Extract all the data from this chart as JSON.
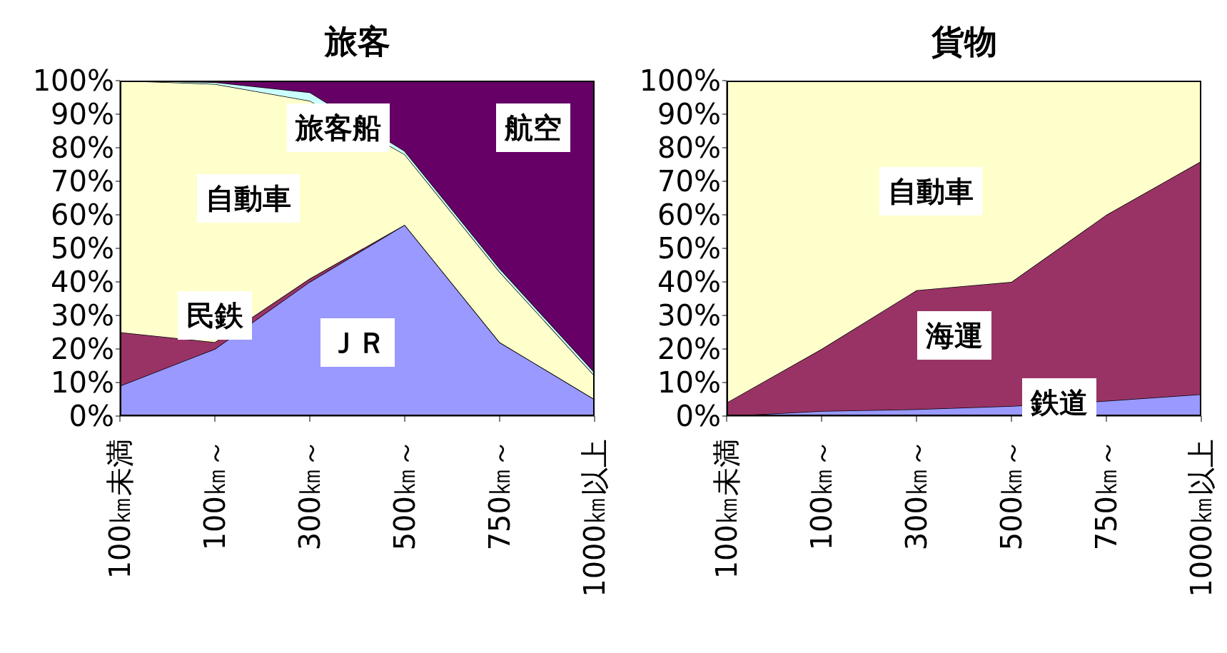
{
  "chart_data": [
    {
      "type": "area",
      "title": "旅客",
      "stacked": true,
      "categories": [
        "100㎞未満",
        "100㎞～",
        "300㎞～",
        "500㎞～",
        "750㎞～",
        "1000㎞以上"
      ],
      "series": [
        {
          "name": "ＪＲ",
          "color": "#9999ff",
          "values": [
            9,
            20,
            40,
            57,
            22,
            5
          ]
        },
        {
          "name": "民鉄",
          "color": "#993366",
          "values": [
            16,
            2,
            1,
            0,
            0,
            0
          ]
        },
        {
          "name": "自動車",
          "color": "#ffffcc",
          "values": [
            75,
            77,
            53,
            21,
            21,
            7
          ]
        },
        {
          "name": "旅客船",
          "color": "#ccffff",
          "values": [
            0,
            0.5,
            2.5,
            1,
            1,
            1
          ]
        },
        {
          "name": "航空",
          "color": "#660066",
          "values": [
            0,
            0.5,
            3.5,
            21,
            56,
            87
          ]
        }
      ],
      "ylim": [
        0,
        100
      ],
      "yticks": [
        {
          "value": 0,
          "label": "0%"
        },
        {
          "value": 10,
          "label": "10%"
        },
        {
          "value": 20,
          "label": "20%"
        },
        {
          "value": 30,
          "label": "30%"
        },
        {
          "value": 40,
          "label": "40%"
        },
        {
          "value": 50,
          "label": "50%"
        },
        {
          "value": 60,
          "label": "60%"
        },
        {
          "value": 70,
          "label": "70%"
        },
        {
          "value": 80,
          "label": "80%"
        },
        {
          "value": 90,
          "label": "90%"
        },
        {
          "value": 100,
          "label": "100%"
        }
      ]
    },
    {
      "type": "area",
      "title": "貨物",
      "stacked": true,
      "categories": [
        "100㎞未満",
        "100㎞～",
        "300㎞～",
        "500㎞～",
        "750㎞～",
        "1000㎞以上"
      ],
      "series": [
        {
          "name": "鉄道",
          "color": "#9999ff",
          "values": [
            0,
            1.5,
            2,
            3,
            4.5,
            6.5
          ]
        },
        {
          "name": "海運",
          "color": "#993366",
          "values": [
            4,
            18.5,
            35.5,
            37,
            55.5,
            69.5
          ]
        },
        {
          "name": "自動車",
          "color": "#ffffcc",
          "values": [
            96,
            80,
            62.5,
            60,
            40,
            24
          ]
        }
      ],
      "ylim": [
        0,
        100
      ],
      "yticks": [
        {
          "value": 0,
          "label": "0%"
        },
        {
          "value": 10,
          "label": "10%"
        },
        {
          "value": 20,
          "label": "20%"
        },
        {
          "value": 30,
          "label": "30%"
        },
        {
          "value": 40,
          "label": "40%"
        },
        {
          "value": 50,
          "label": "50%"
        },
        {
          "value": 60,
          "label": "60%"
        },
        {
          "value": 70,
          "label": "70%"
        },
        {
          "value": 80,
          "label": "80%"
        },
        {
          "value": 90,
          "label": "90%"
        },
        {
          "value": 100,
          "label": "100%"
        }
      ]
    }
  ]
}
